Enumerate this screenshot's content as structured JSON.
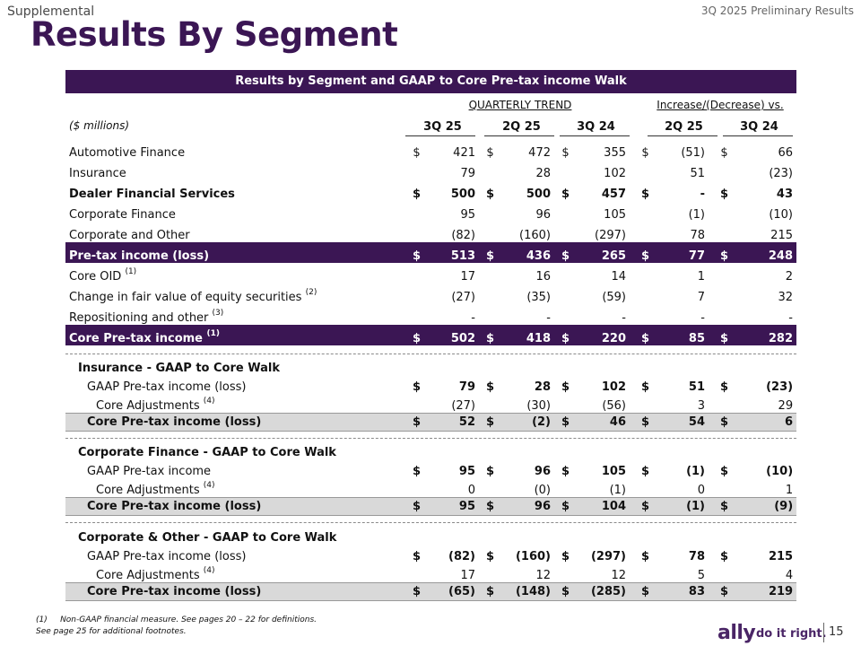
{
  "header": {
    "supplemental": "Supplemental",
    "period": "3Q 2025 Preliminary Results",
    "title": "Results By Segment"
  },
  "table_title": "Results by Segment and GAAP to Core Pre-tax income Walk",
  "groups": {
    "quarterly": "QUARTERLY TREND",
    "change": "Increase/(Decrease) vs."
  },
  "units": "($ millions)",
  "columns": [
    "3Q 25",
    "2Q 25",
    "3Q 24",
    "2Q 25",
    "3Q 24"
  ],
  "rows": [
    {
      "label": "Automotive Finance",
      "sup": "",
      "dollar": true,
      "values": [
        "421",
        "472",
        "355",
        "(51)",
        "66"
      ],
      "style": "normal"
    },
    {
      "label": "Insurance",
      "sup": "",
      "dollar": false,
      "values": [
        "79",
        "28",
        "102",
        "51",
        "(23)"
      ],
      "style": "normal"
    },
    {
      "label": "Dealer Financial Services",
      "sup": "",
      "dollar": true,
      "values": [
        "500",
        "500",
        "457",
        "-",
        "43"
      ],
      "style": "bold"
    },
    {
      "label": "Corporate Finance",
      "sup": "",
      "dollar": false,
      "values": [
        "95",
        "96",
        "105",
        "(1)",
        "(10)"
      ],
      "style": "normal"
    },
    {
      "label": "Corporate and Other",
      "sup": "",
      "dollar": false,
      "values": [
        "(82)",
        "(160)",
        "(297)",
        "78",
        "215"
      ],
      "style": "normal"
    },
    {
      "label": "Pre-tax income (loss)",
      "sup": "",
      "dollar": true,
      "values": [
        "513",
        "436",
        "265",
        "77",
        "248"
      ],
      "style": "highlight"
    },
    {
      "label": "Core OID",
      "sup": "(1)",
      "dollar": false,
      "values": [
        "17",
        "16",
        "14",
        "1",
        "2"
      ],
      "style": "normal"
    },
    {
      "label": "Change in fair value of equity securities",
      "sup": "(2)",
      "dollar": false,
      "values": [
        "(27)",
        "(35)",
        "(59)",
        "7",
        "32"
      ],
      "style": "normal"
    },
    {
      "label": "Repositioning and other",
      "sup": "(3)",
      "dollar": false,
      "values": [
        "-",
        "-",
        "-",
        "-",
        "-"
      ],
      "style": "normal"
    },
    {
      "label": "Core Pre-tax income",
      "sup": "(1)",
      "dollar": true,
      "values": [
        "502",
        "418",
        "220",
        "85",
        "282"
      ],
      "style": "highlight"
    }
  ],
  "walks": [
    {
      "title": "Insurance - GAAP to Core Walk",
      "gaap": {
        "label": "GAAP Pre-tax income (loss)",
        "values": [
          "79",
          "28",
          "102",
          "51",
          "(23)"
        ]
      },
      "adj": {
        "label": "Core Adjustments",
        "sup": "(4)",
        "values": [
          "(27)",
          "(30)",
          "(56)",
          "3",
          "29"
        ]
      },
      "core": {
        "label": "Core Pre-tax income (loss)",
        "values": [
          "52",
          "(2)",
          "46",
          "54",
          "6"
        ]
      }
    },
    {
      "title": "Corporate Finance - GAAP to Core Walk",
      "gaap": {
        "label": "GAAP Pre-tax income",
        "values": [
          "95",
          "96",
          "105",
          "(1)",
          "(10)"
        ]
      },
      "adj": {
        "label": "Core Adjustments",
        "sup": "(4)",
        "values": [
          "0",
          "(0)",
          "(1)",
          "0",
          "1"
        ]
      },
      "core": {
        "label": "Core Pre-tax income (loss)",
        "values": [
          "95",
          "96",
          "104",
          "(1)",
          "(9)"
        ]
      }
    },
    {
      "title": "Corporate & Other - GAAP to Core Walk",
      "gaap": {
        "label": "GAAP Pre-tax income (loss)",
        "values": [
          "(82)",
          "(160)",
          "(297)",
          "78",
          "215"
        ]
      },
      "adj": {
        "label": "Core Adjustments",
        "sup": "(4)",
        "values": [
          "17",
          "12",
          "12",
          "5",
          "4"
        ]
      },
      "core": {
        "label": "Core Pre-tax income (loss)",
        "values": [
          "(65)",
          "(148)",
          "(285)",
          "83",
          "219"
        ]
      }
    }
  ],
  "dollar_sign": "$",
  "footnotes": {
    "note1_marker": "(1)",
    "note1": "Non-GAAP financial measure. See pages 20 – 22 for definitions.",
    "note2": "See page 25 for additional footnotes."
  },
  "branding": {
    "logo": "ally",
    "tagline": "do it right.",
    "page": "15"
  },
  "colors": {
    "brand_purple": "#3b1654",
    "core_row_gray": "#d9d9d9"
  }
}
